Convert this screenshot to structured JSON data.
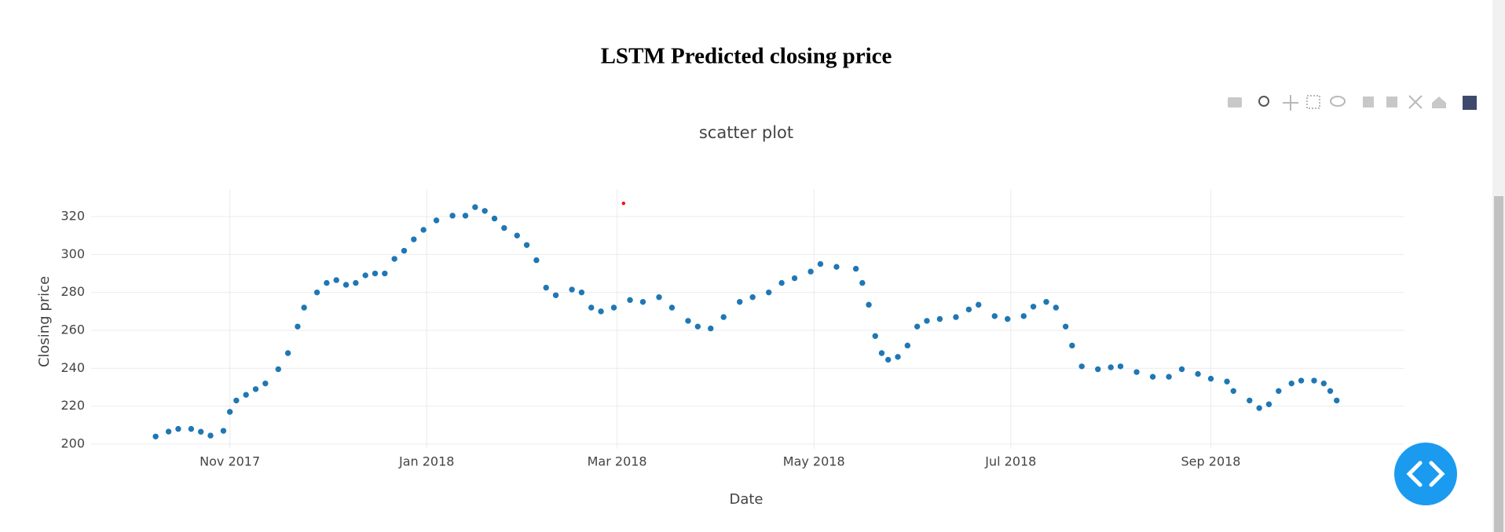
{
  "chart_data": {
    "type": "scatter",
    "title": "LSTM Predicted closing price",
    "subtitle": "scatter plot",
    "x_label": "Date",
    "y_label": "Closing price",
    "grid": true,
    "xlim": [
      -12,
      395
    ],
    "ylim": [
      197.5,
      334.5
    ],
    "xticks": [
      {
        "value": 31,
        "label": "Nov 2017"
      },
      {
        "value": 92,
        "label": "Jan 2018"
      },
      {
        "value": 151,
        "label": "Mar 2018"
      },
      {
        "value": 212,
        "label": "May 2018"
      },
      {
        "value": 273,
        "label": "Jul 2018"
      },
      {
        "value": 335,
        "label": "Sep 2018"
      }
    ],
    "yticks": [
      200,
      220,
      240,
      260,
      280,
      300,
      320
    ],
    "series": [
      {
        "color": "#1f77b4",
        "marker_size": 3.7,
        "x": [
          8,
          12,
          15,
          19,
          22,
          25,
          29,
          31,
          33,
          36,
          39,
          42,
          46,
          49,
          52,
          54,
          58,
          61,
          64,
          67,
          70,
          73,
          76,
          79,
          82,
          85,
          88,
          91,
          95,
          100,
          104,
          107,
          110,
          113,
          116,
          120,
          123,
          126,
          129,
          132,
          137,
          140,
          143,
          146,
          150,
          155,
          159,
          164,
          168,
          173,
          176,
          180,
          184,
          189,
          193,
          198,
          202,
          206,
          211,
          214,
          219,
          225,
          227,
          229,
          231,
          233,
          235,
          238,
          241,
          244,
          247,
          251,
          256,
          260,
          263,
          268,
          272,
          277,
          280,
          284,
          287,
          290,
          292,
          295,
          300,
          304,
          307,
          312,
          317,
          322,
          326,
          331,
          335,
          340,
          342,
          347,
          350,
          353,
          356,
          360,
          363,
          367,
          370,
          372,
          374
        ],
        "values": [
          204,
          206.6,
          208,
          208,
          206.5,
          204.5,
          207,
          217,
          223,
          226,
          229,
          232,
          239.5,
          248,
          262,
          272,
          280,
          285,
          286.5,
          284,
          285,
          289,
          290,
          290,
          297.7,
          302,
          308,
          313,
          318,
          320.5,
          320.5,
          325,
          323,
          319,
          314,
          310,
          305,
          297,
          282.5,
          278.5,
          281.5,
          280,
          272,
          270,
          272,
          276,
          275,
          277.5,
          272,
          265,
          262,
          261,
          267,
          275,
          277.5,
          280,
          285,
          287.5,
          291,
          295,
          293.5,
          292.5,
          285,
          273.5,
          257,
          248,
          244.5,
          246,
          252,
          262,
          265,
          266,
          267,
          271,
          273.5,
          267.5,
          266,
          267.5,
          272.5,
          275,
          272,
          262,
          252,
          241,
          239.5,
          240.5,
          241,
          238,
          235.5,
          235.5,
          239.5,
          237,
          234.5,
          233,
          228,
          223,
          219,
          221,
          228,
          232,
          233.5,
          233.5,
          232,
          228,
          223
        ]
      },
      {
        "color": "#ff0000",
        "marker_size": 2.2,
        "x": [
          153
        ],
        "values": [
          327
        ]
      }
    ]
  }
}
